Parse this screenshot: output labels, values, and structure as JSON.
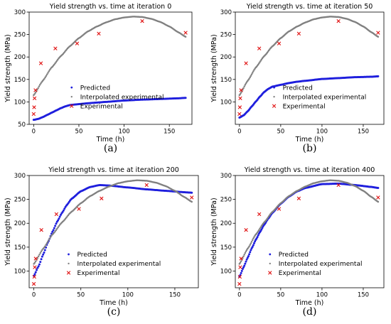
{
  "chart_data": [
    {
      "type": "scatter",
      "caption": "(a)",
      "title": "Yield strength vs. time at iteration 0",
      "xlabel": "Time (h)",
      "ylabel": "Yield strength (MPa)",
      "xlim": [
        -5,
        175
      ],
      "ylim": [
        50,
        300
      ],
      "xticks": [
        0,
        50,
        100,
        150
      ],
      "yticks": [
        50,
        100,
        150,
        200,
        250,
        300
      ],
      "legend": "center-right",
      "series": [
        {
          "name": "Predicted",
          "color": "#1f1fdd",
          "style": "dense-dots",
          "x": [
            0,
            5,
            10,
            15,
            20,
            25,
            30,
            35,
            40,
            50,
            60,
            70,
            80,
            100,
            120,
            140,
            160,
            168
          ],
          "y": [
            60,
            62,
            66,
            71,
            76,
            81,
            86,
            90,
            93,
            95,
            97,
            98.5,
            100,
            103,
            105,
            106.5,
            108,
            109
          ]
        },
        {
          "name": "Interpolated experimental",
          "color": "#808080",
          "style": "dense-dots",
          "x": [
            0,
            10,
            20,
            30,
            40,
            50,
            60,
            70,
            80,
            90,
            100,
            110,
            120,
            130,
            140,
            150,
            160,
            168
          ],
          "y": [
            115,
            147,
            177,
            202,
            224,
            242,
            257,
            268,
            277,
            284,
            288,
            290,
            289,
            285,
            278,
            268,
            255,
            245
          ]
        },
        {
          "name": "Experimental",
          "color": "#e01010",
          "style": "x",
          "x": [
            0,
            0.5,
            1,
            2,
            8,
            24,
            48,
            72,
            120,
            168
          ],
          "y": [
            73,
            88,
            108,
            126,
            186,
            219,
            230,
            252,
            280,
            254
          ]
        }
      ]
    },
    {
      "type": "scatter",
      "caption": "(b)",
      "title": "Yield strength vs. time at iteration 50",
      "xlabel": "Time (h)",
      "ylabel": "Yield strength (MPa)",
      "xlim": [
        -5,
        175
      ],
      "ylim": [
        50,
        300
      ],
      "xticks": [
        0,
        50,
        100,
        150
      ],
      "yticks": [
        100,
        150,
        200,
        250,
        300
      ],
      "legend": "center-right",
      "series": [
        {
          "name": "Predicted",
          "color": "#1f1fdd",
          "style": "dense-dots",
          "x": [
            0,
            5,
            10,
            15,
            20,
            25,
            30,
            35,
            40,
            50,
            60,
            70,
            80,
            100,
            120,
            140,
            160,
            168
          ],
          "y": [
            65,
            70,
            79,
            90,
            101,
            112,
            122,
            129,
            134,
            138,
            142,
            145,
            147,
            151,
            153,
            155,
            156,
            157
          ]
        },
        {
          "name": "Interpolated experimental",
          "color": "#808080",
          "style": "dense-dots",
          "x": [
            0,
            10,
            20,
            30,
            40,
            50,
            60,
            70,
            80,
            90,
            100,
            110,
            120,
            130,
            140,
            150,
            160,
            168
          ],
          "y": [
            115,
            147,
            177,
            202,
            224,
            242,
            257,
            268,
            277,
            284,
            288,
            290,
            289,
            285,
            278,
            268,
            255,
            245
          ]
        },
        {
          "name": "Experimental",
          "color": "#e01010",
          "style": "x",
          "x": [
            0,
            0.5,
            1,
            2,
            8,
            24,
            48,
            72,
            120,
            168
          ],
          "y": [
            73,
            88,
            108,
            126,
            186,
            219,
            230,
            252,
            280,
            254
          ]
        }
      ]
    },
    {
      "type": "scatter",
      "caption": "(c)",
      "title": "Yield strength vs. time at iteration 200",
      "xlabel": "Time (h)",
      "ylabel": "Yield strength (MPa)",
      "xlim": [
        -5,
        175
      ],
      "ylim": [
        65,
        300
      ],
      "xticks": [
        0,
        50,
        100,
        150
      ],
      "yticks": [
        100,
        150,
        200,
        250,
        300
      ],
      "legend": "bottom-center",
      "series": [
        {
          "name": "Predicted",
          "color": "#1f1fdd",
          "style": "dense-dots",
          "x": [
            0,
            5,
            10,
            15,
            20,
            25,
            30,
            35,
            40,
            50,
            60,
            70,
            80,
            100,
            120,
            140,
            160,
            168
          ],
          "y": [
            90,
            110,
            135,
            160,
            183,
            204,
            222,
            238,
            251,
            267,
            276,
            280,
            279,
            275,
            271,
            268,
            265,
            264
          ]
        },
        {
          "name": "Interpolated experimental",
          "color": "#808080",
          "style": "dense-dots",
          "x": [
            0,
            10,
            20,
            30,
            40,
            50,
            60,
            70,
            80,
            90,
            100,
            110,
            120,
            130,
            140,
            150,
            160,
            168
          ],
          "y": [
            115,
            147,
            177,
            202,
            224,
            242,
            257,
            268,
            277,
            284,
            288,
            290,
            289,
            285,
            278,
            268,
            255,
            245
          ]
        },
        {
          "name": "Experimental",
          "color": "#e01010",
          "style": "x",
          "x": [
            0,
            0.5,
            1,
            2,
            8,
            24,
            48,
            72,
            120,
            168
          ],
          "y": [
            73,
            88,
            108,
            126,
            186,
            219,
            230,
            252,
            280,
            254
          ]
        }
      ]
    },
    {
      "type": "scatter",
      "caption": "(d)",
      "title": "Yield strength vs. time at iteration 400",
      "xlabel": "Time (h)",
      "ylabel": "Yield strength (MPa)",
      "xlim": [
        -5,
        175
      ],
      "ylim": [
        65,
        300
      ],
      "xticks": [
        0,
        50,
        100,
        150
      ],
      "yticks": [
        100,
        150,
        200,
        250,
        300
      ],
      "legend": "bottom-center",
      "series": [
        {
          "name": "Predicted",
          "color": "#1f1fdd",
          "style": "dense-dots",
          "x": [
            0,
            5,
            10,
            15,
            20,
            25,
            30,
            35,
            40,
            50,
            60,
            70,
            80,
            100,
            120,
            140,
            160,
            168
          ],
          "y": [
            88,
            108,
            128,
            148,
            166,
            182,
            197,
            210,
            222,
            241,
            256,
            267,
            274,
            282,
            283,
            280,
            276,
            274
          ]
        },
        {
          "name": "Interpolated experimental",
          "color": "#808080",
          "style": "dense-dots",
          "x": [
            0,
            10,
            20,
            30,
            40,
            50,
            60,
            70,
            80,
            90,
            100,
            110,
            120,
            130,
            140,
            150,
            160,
            168
          ],
          "y": [
            115,
            147,
            177,
            202,
            224,
            242,
            257,
            268,
            277,
            284,
            288,
            290,
            289,
            285,
            278,
            268,
            255,
            245
          ]
        },
        {
          "name": "Experimental",
          "color": "#e01010",
          "style": "x",
          "x": [
            0,
            0.5,
            1,
            2,
            8,
            24,
            48,
            72,
            120,
            168
          ],
          "y": [
            73,
            88,
            108,
            126,
            186,
            219,
            230,
            252,
            280,
            254
          ]
        }
      ]
    }
  ]
}
